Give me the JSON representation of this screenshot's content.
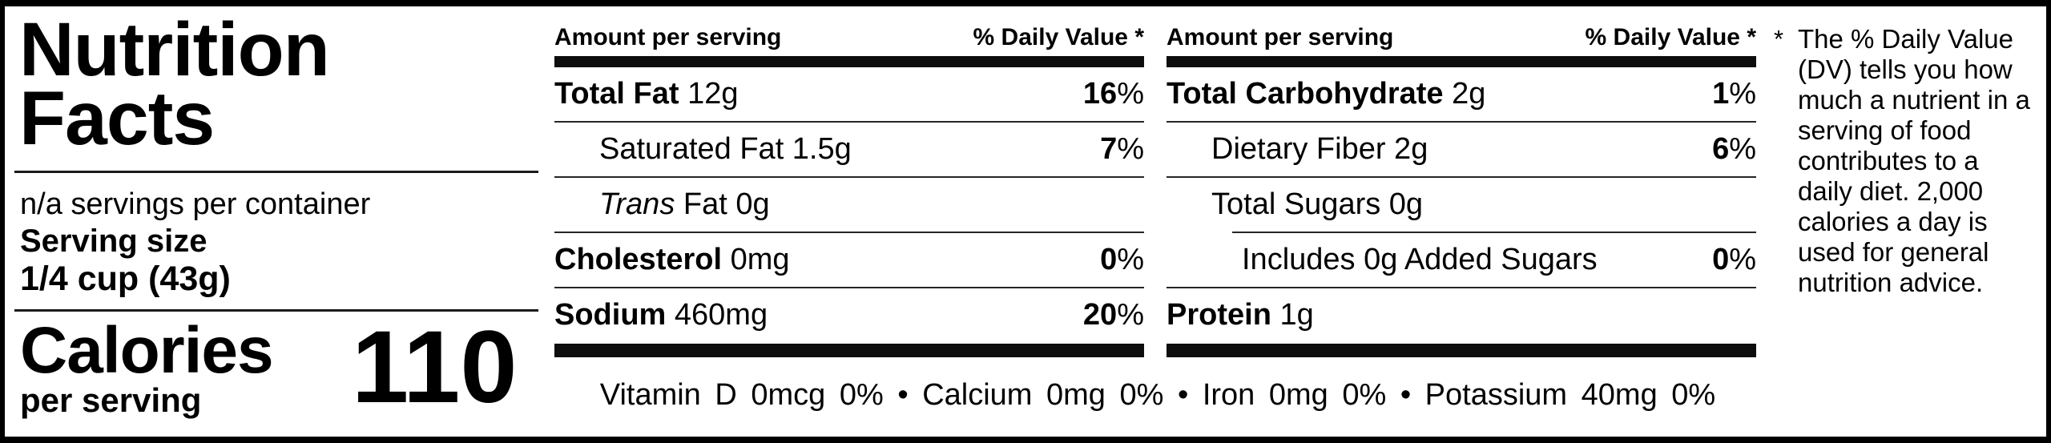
{
  "colors": {
    "ink": "#000000",
    "paper": "#ffffff"
  },
  "header": {
    "title": "Nutrition\nFacts",
    "servings_per_container": "n/a servings per container",
    "serving_size_label": "Serving size",
    "serving_size_value": "1/4 cup (43g)"
  },
  "calories": {
    "label": "Calories",
    "sublabel": "per serving",
    "value": "110"
  },
  "columns": [
    {
      "header_left": "Amount per serving",
      "header_right": "% Daily Value *",
      "rows": [
        {
          "bold": "Total Fat",
          "reg": " 12g",
          "dv": "16",
          "pct": "%"
        },
        {
          "reg": "Saturated Fat 1.5g",
          "dv": "7",
          "pct": "%"
        },
        {
          "italic": "Trans",
          "reg": " Fat 0g"
        },
        {
          "bold": "Cholesterol",
          "reg": " 0mg",
          "dv": "0",
          "pct": "%"
        },
        {
          "bold": "Sodium",
          "reg": " 460mg",
          "dv": "20",
          "pct": "%"
        }
      ]
    },
    {
      "header_left": "Amount per serving",
      "header_right": "% Daily Value *",
      "rows": [
        {
          "bold": "Total Carbohydrate",
          "reg": " 2g",
          "dv": "1",
          "pct": "%"
        },
        {
          "reg": "Dietary Fiber 2g",
          "dv": "6",
          "pct": "%"
        },
        {
          "reg": "Total Sugars 0g"
        },
        {
          "reg": "Includes 0g Added Sugars",
          "dv": "0",
          "pct": "%"
        },
        {
          "bold": "Protein",
          "reg": " 1g"
        }
      ]
    }
  ],
  "micronutrients": {
    "line": "Vitamin D 0mcg 0% • Calcium 0mg 0% • Iron 0mg 0% • Potassium 40mg 0%"
  },
  "footnote": {
    "marker": "*",
    "text": "The % Daily Value (DV) tells you how much a nutrient in a serving of food contributes to a daily diet. 2,000 calories a day is used for general nutrition advice."
  }
}
